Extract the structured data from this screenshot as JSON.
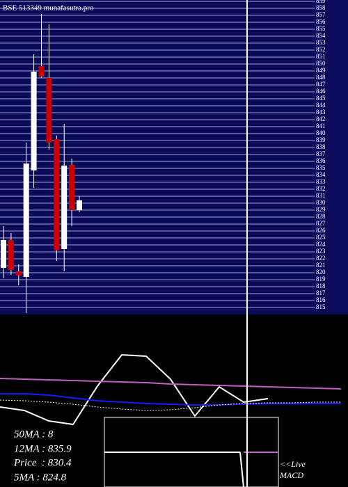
{
  "chart_data": [
    {
      "type": "candlestick",
      "title": "BSE 513349 munafasutra.pro",
      "categories": [
        null,
        null,
        null,
        null,
        null,
        null,
        null,
        null,
        null,
        null,
        null
      ],
      "open": [
        820.7,
        824.7,
        820.2,
        819.4,
        834.7,
        849.7,
        848.0,
        839.2,
        823.4,
        835.5,
        829.0
      ],
      "high": [
        826.7,
        825.7,
        821.2,
        838.7,
        851.4,
        857.2,
        855.7,
        839.7,
        841.4,
        836.4,
        831.0
      ],
      "low": [
        819.2,
        819.7,
        818.2,
        814.2,
        832.2,
        848.0,
        837.7,
        821.7,
        820.2,
        826.7,
        828.7
      ],
      "close": [
        824.7,
        820.4,
        819.6,
        835.7,
        848.9,
        848.2,
        838.7,
        823.2,
        835.4,
        829.0,
        830.4
      ],
      "up_color": "#ffffff",
      "down_color": "#cc0000",
      "ylim": [
        814.2,
        859.2
      ],
      "yticks": [
        815,
        816,
        817,
        818,
        819,
        820,
        821,
        822,
        823,
        824,
        825,
        826,
        827,
        828,
        829,
        830,
        831,
        832,
        833,
        834,
        835,
        836,
        837,
        838,
        839,
        840,
        841,
        842,
        843,
        844,
        845,
        846,
        847,
        848,
        849,
        850,
        851,
        852,
        853,
        854,
        855,
        856,
        857,
        858,
        859
      ],
      "grid": true
    },
    {
      "type": "line",
      "x": [
        0,
        35,
        70,
        105,
        140,
        175,
        210,
        245,
        280,
        315,
        350,
        385,
        420,
        455,
        490
      ],
      "xlim": [
        0,
        500
      ],
      "ylim": [
        0,
        245
      ],
      "series": [
        {
          "color": "#ffffff",
          "values": [
            115,
            110,
            95,
            90,
            145,
            190,
            188,
            155,
            102,
            144,
            122,
            127,
            null,
            null,
            null
          ]
        },
        {
          "color": "#c060c0",
          "values": [
            156,
            155,
            154,
            153,
            152,
            151,
            150,
            148,
            147,
            146,
            145,
            144,
            143,
            142,
            141
          ]
        },
        {
          "color": "#1a1aff",
          "values": [
            134,
            134,
            132,
            128,
            124,
            122,
            120,
            119,
            118,
            118,
            119,
            120,
            120,
            120,
            120
          ]
        },
        {
          "color": "#ffffff",
          "dashed": true,
          "values": [
            125,
            124,
            122,
            119,
            115,
            112,
            110,
            111,
            114,
            118,
            120,
            121,
            121,
            122,
            122
          ]
        }
      ],
      "annotations": [
        "50MA : 8",
        "12MA : 835.9",
        "Price  : 830.4",
        "5MA : 824.8"
      ],
      "live_label": "<<Live",
      "indicator_label": "MACD"
    }
  ]
}
